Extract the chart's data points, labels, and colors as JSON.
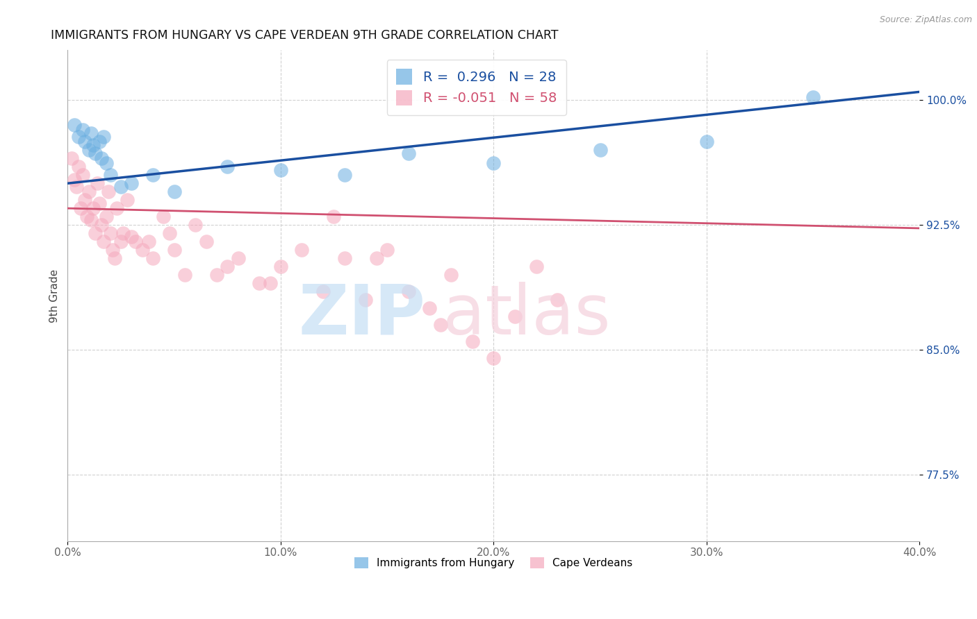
{
  "title": "IMMIGRANTS FROM HUNGARY VS CAPE VERDEAN 9TH GRADE CORRELATION CHART",
  "source": "Source: ZipAtlas.com",
  "ylabel": "9th Grade",
  "xlim": [
    0.0,
    40.0
  ],
  "ylim": [
    73.5,
    103.0
  ],
  "yticks": [
    77.5,
    85.0,
    92.5,
    100.0
  ],
  "ytick_labels": [
    "77.5%",
    "85.0%",
    "92.5%",
    "100.0%"
  ],
  "xticks": [
    0,
    10,
    20,
    30,
    40
  ],
  "xtick_labels": [
    "0.0%",
    "10.0%",
    "20.0%",
    "30.0%",
    "40.0%"
  ],
  "blue_R": 0.296,
  "blue_N": 28,
  "pink_R": -0.051,
  "pink_N": 58,
  "blue_color": "#6aaee0",
  "pink_color": "#f5a8bc",
  "blue_line_color": "#1a4fa0",
  "pink_line_color": "#d05070",
  "legend_label_blue": "Immigrants from Hungary",
  "legend_label_pink": "Cape Verdeans",
  "blue_line_x": [
    0.0,
    40.0
  ],
  "blue_line_y": [
    95.0,
    100.5
  ],
  "pink_line_x": [
    0.0,
    40.0
  ],
  "pink_line_y": [
    93.5,
    92.3
  ],
  "blue_dots_x": [
    0.3,
    0.5,
    0.7,
    0.8,
    1.0,
    1.1,
    1.2,
    1.3,
    1.5,
    1.6,
    1.7,
    1.8,
    2.0,
    2.5,
    3.0,
    4.0,
    5.0,
    7.5,
    10.0,
    13.0,
    16.0,
    20.0,
    25.0,
    30.0,
    35.0
  ],
  "blue_dots_y": [
    98.5,
    97.8,
    98.2,
    97.5,
    97.0,
    98.0,
    97.3,
    96.8,
    97.5,
    96.5,
    97.8,
    96.2,
    95.5,
    94.8,
    95.0,
    95.5,
    94.5,
    96.0,
    95.8,
    95.5,
    96.8,
    96.2,
    97.0,
    97.5,
    100.2
  ],
  "pink_dots_x": [
    0.2,
    0.3,
    0.4,
    0.5,
    0.6,
    0.7,
    0.8,
    0.9,
    1.0,
    1.1,
    1.2,
    1.3,
    1.4,
    1.5,
    1.6,
    1.7,
    1.8,
    2.0,
    2.1,
    2.3,
    2.5,
    2.8,
    3.0,
    3.5,
    4.0,
    4.5,
    5.0,
    5.5,
    6.0,
    6.5,
    7.0,
    8.0,
    9.0,
    10.0,
    11.0,
    12.0,
    13.0,
    14.0,
    15.0,
    16.0,
    17.0,
    18.0,
    19.0,
    20.0,
    21.0,
    22.0,
    23.0,
    4.8,
    2.2,
    3.2,
    7.5,
    9.5,
    12.5,
    14.5,
    17.5,
    1.9,
    2.6,
    3.8
  ],
  "pink_dots_y": [
    96.5,
    95.2,
    94.8,
    96.0,
    93.5,
    95.5,
    94.0,
    93.0,
    94.5,
    92.8,
    93.5,
    92.0,
    95.0,
    93.8,
    92.5,
    91.5,
    93.0,
    92.0,
    91.0,
    93.5,
    91.5,
    94.0,
    91.8,
    91.0,
    90.5,
    93.0,
    91.0,
    89.5,
    92.5,
    91.5,
    89.5,
    90.5,
    89.0,
    90.0,
    91.0,
    88.5,
    90.5,
    88.0,
    91.0,
    88.5,
    87.5,
    89.5,
    85.5,
    84.5,
    87.0,
    90.0,
    88.0,
    92.0,
    90.5,
    91.5,
    90.0,
    89.0,
    93.0,
    90.5,
    86.5,
    94.5,
    92.0,
    91.5
  ]
}
